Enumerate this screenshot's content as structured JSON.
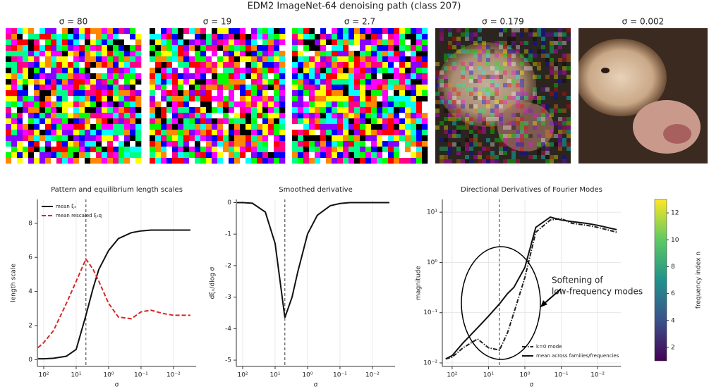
{
  "title": "EDM2 ImageNet-64 denoising path (class 207)",
  "panels": [
    {
      "title": "σ = 80"
    },
    {
      "title": "σ = 19"
    },
    {
      "title": "σ = 2.7"
    },
    {
      "title": "σ = 0.179"
    },
    {
      "title": "σ = 0.002"
    }
  ],
  "chart_data": [
    {
      "type": "line",
      "title": "Pattern and equilibrium length scales",
      "xlabel": "σ",
      "ylabel": "length scale",
      "xscale": "log",
      "xlim": [
        157,
        0.002
      ],
      "ylim": [
        -0.4,
        9.4
      ],
      "xticks": [
        {
          "value": 100,
          "label": "10²"
        },
        {
          "value": 10,
          "label": "10¹"
        },
        {
          "value": 1,
          "label": "10⁰"
        },
        {
          "value": 0.1,
          "label": "10⁻¹"
        },
        {
          "value": 0.01,
          "label": "10⁻²"
        }
      ],
      "yticks": [
        0,
        2,
        4,
        6,
        8
      ],
      "grid": true,
      "vline": 5,
      "legend": "upper left",
      "x": [
        150,
        100,
        50,
        20,
        10,
        5,
        3,
        2,
        1,
        0.5,
        0.2,
        0.1,
        0.05,
        0.02,
        0.01,
        0.003
      ],
      "series": [
        {
          "name": "mean ξₓ",
          "color": "#111111",
          "style": "solid",
          "values": [
            0.05,
            0.05,
            0.08,
            0.2,
            0.6,
            2.6,
            4.2,
            5.3,
            6.4,
            7.1,
            7.45,
            7.55,
            7.6,
            7.6,
            7.6,
            7.6
          ]
        },
        {
          "name": "mean rescaled ξₑq",
          "color": "#d62728",
          "style": "dashed",
          "values": [
            0.7,
            1.0,
            1.7,
            3.3,
            4.6,
            5.9,
            5.3,
            4.6,
            3.3,
            2.5,
            2.4,
            2.8,
            2.9,
            2.7,
            2.6,
            2.6
          ]
        }
      ]
    },
    {
      "type": "line",
      "title": "Smoothed derivative",
      "xlabel": "σ",
      "ylabel": "dξₓ/dlog σ",
      "xscale": "log",
      "xlim": [
        157,
        0.002
      ],
      "ylim": [
        -5.2,
        0.1
      ],
      "xticks": [
        {
          "value": 100,
          "label": "10²"
        },
        {
          "value": 10,
          "label": "10¹"
        },
        {
          "value": 1,
          "label": "10⁰"
        },
        {
          "value": 0.1,
          "label": "10⁻¹"
        },
        {
          "value": 0.01,
          "label": "10⁻²"
        }
      ],
      "yticks": [
        0,
        -1,
        -2,
        -3,
        -4,
        -5
      ],
      "grid": true,
      "vline": 5,
      "x": [
        150,
        100,
        50,
        20,
        10,
        5,
        3,
        2,
        1,
        0.5,
        0.2,
        0.1,
        0.05,
        0.02,
        0.01,
        0.003
      ],
      "series": [
        {
          "color": "#111111",
          "style": "solid",
          "values": [
            0,
            0,
            -0.02,
            -0.3,
            -1.3,
            -3.65,
            -3.0,
            -2.2,
            -1.0,
            -0.4,
            -0.1,
            -0.03,
            0,
            0,
            0,
            0
          ]
        }
      ]
    },
    {
      "type": "line",
      "title": "Directional Derivatives of Fourier Modes",
      "xlabel": "σ",
      "ylabel": "magnitude",
      "xscale": "log",
      "yscale": "log",
      "xlim": [
        186,
        0.0023
      ],
      "ylim": [
        0.0085,
        18
      ],
      "xticks": [
        {
          "value": 100,
          "label": "10²"
        },
        {
          "value": 10,
          "label": "10¹"
        },
        {
          "value": 1,
          "label": "10⁰"
        },
        {
          "value": 0.1,
          "label": "10⁻¹"
        },
        {
          "value": 0.01,
          "label": "10⁻²"
        }
      ],
      "yticks": [
        {
          "value": 0.01,
          "label": "10⁻²"
        },
        {
          "value": 0.1,
          "label": "10⁻¹"
        },
        {
          "value": 1,
          "label": "10⁰"
        },
        {
          "value": 10,
          "label": "10¹"
        }
      ],
      "grid": true,
      "vline": 5,
      "legend": "lower right",
      "annotation": [
        "Softening of",
        "low-frequency modes"
      ],
      "x": [
        150,
        100,
        50,
        20,
        10,
        5,
        3,
        2,
        1,
        0.5,
        0.2,
        0.1,
        0.05,
        0.02,
        0.01,
        0.003
      ],
      "series": [
        {
          "name": "k=0 mode",
          "color": "#222222",
          "style": "dashdot",
          "values": [
            0.012,
            0.013,
            0.02,
            0.03,
            0.02,
            0.018,
            0.04,
            0.1,
            0.5,
            4,
            7,
            7.5,
            6,
            5.5,
            5,
            4
          ]
        },
        {
          "name": "mean across families/frequencies",
          "color": "#111111",
          "style": "solid",
          "values": [
            0.012,
            0.014,
            0.025,
            0.05,
            0.085,
            0.15,
            0.24,
            0.32,
            0.8,
            5,
            8,
            7,
            6.5,
            6,
            5.5,
            4.5
          ]
        }
      ],
      "colorbar": {
        "label": "frequency index n",
        "lim": [
          1,
          13
        ],
        "ticks": [
          2,
          4,
          6,
          8,
          10,
          12
        ],
        "colormap": "viridis"
      }
    }
  ]
}
